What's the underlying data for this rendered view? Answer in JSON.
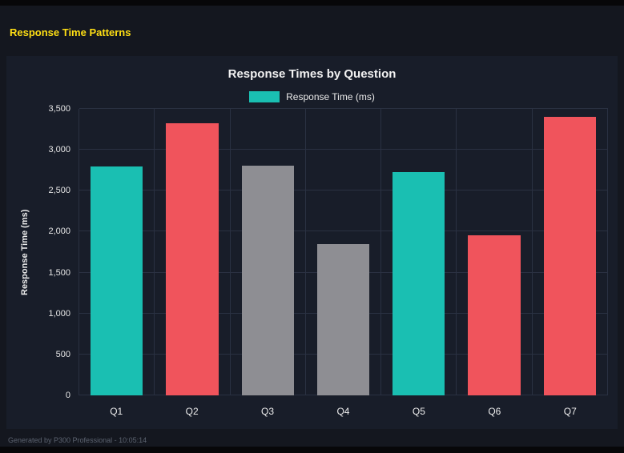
{
  "page": {
    "title": "Response Time Patterns"
  },
  "footer": {
    "text": "Generated by P300 Professional - 10:05:14"
  },
  "chart": {
    "title": "Response Times by Question",
    "legend_label": "Response Time (ms)",
    "y_axis_label": "Response Time (ms)"
  },
  "chart_data": {
    "type": "bar",
    "title": "Response Times by Question",
    "categories": [
      "Q1",
      "Q2",
      "Q3",
      "Q4",
      "Q5",
      "Q6",
      "Q7"
    ],
    "values": [
      2800,
      3320,
      2810,
      1850,
      2730,
      1960,
      3400
    ],
    "bar_colors": [
      "#1abfb2",
      "#f0545c",
      "#8e8e93",
      "#8e8e93",
      "#1abfb2",
      "#f0545c",
      "#f0545c"
    ],
    "xlabel": "",
    "ylabel": "Response Time (ms)",
    "ylim": [
      0,
      3500
    ],
    "yticks": [
      0,
      500,
      1000,
      1500,
      2000,
      2500,
      3000,
      3500
    ],
    "ytick_labels": [
      "0",
      "500",
      "1,000",
      "1,500",
      "2,000",
      "2,500",
      "3,000",
      "3,500"
    ],
    "legend": [
      "Response Time (ms)"
    ],
    "legend_position": "top",
    "grid": true,
    "colors": {
      "teal": "#1abfb2",
      "red": "#f0545c",
      "gray": "#8e8e93",
      "background": "#181d29",
      "page_background": "#14171f",
      "gridline": "#2a3142",
      "title_yellow": "#ffdf14"
    }
  }
}
